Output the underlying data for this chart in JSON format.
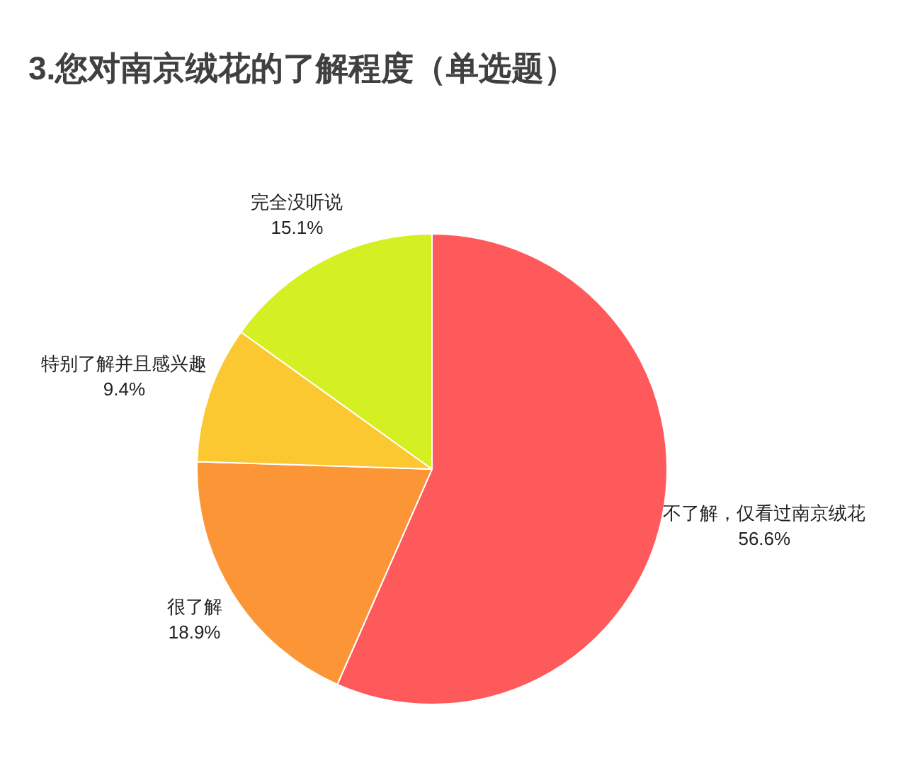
{
  "chart_data": {
    "type": "pie",
    "title": "3.您对南京绒花的了解程度（单选题）",
    "categories": [
      "不了解，仅看过南京绒花",
      "很了解",
      "特别了解并且感兴趣",
      "完全没听说"
    ],
    "values": [
      56.6,
      18.9,
      9.4,
      15.1
    ],
    "colors": [
      "#fe5a5b",
      "#fb9536",
      "#fcc832",
      "#d4ef22"
    ],
    "value_labels": [
      "56.6%",
      "18.9%",
      "9.4%",
      "15.1%"
    ]
  }
}
